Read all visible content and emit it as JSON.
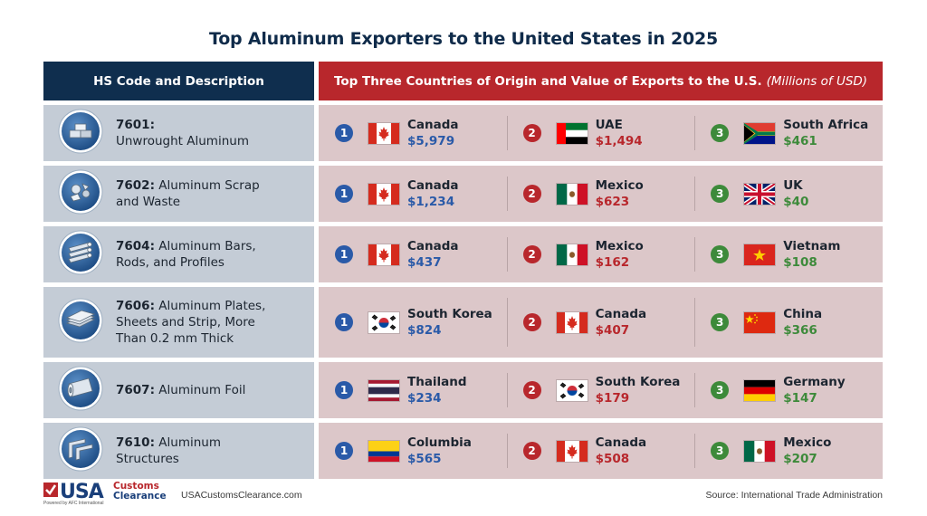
{
  "title": "Top Aluminum Exporters to the United States in 2025",
  "header": {
    "left": "HS Code and Description",
    "right": "Top Three Countries of Origin and Value of Exports to the U.S.",
    "right_unit": "(Millions of USD)"
  },
  "rows": [
    {
      "code": "7601:",
      "desc": "Unwrought Aluminum",
      "icon": "aluminum-ingots-icon",
      "exporters": [
        {
          "rank": "1",
          "country": "Canada",
          "value": "$5,979",
          "flag": "canada-flag-icon"
        },
        {
          "rank": "2",
          "country": "UAE",
          "value": "$1,494",
          "flag": "uae-flag-icon"
        },
        {
          "rank": "3",
          "country": "South Africa",
          "value": "$461",
          "flag": "south-africa-flag-icon"
        }
      ]
    },
    {
      "code": "7602:",
      "desc": "Aluminum Scrap and Waste",
      "icon": "aluminum-scrap-icon",
      "exporters": [
        {
          "rank": "1",
          "country": "Canada",
          "value": "$1,234",
          "flag": "canada-flag-icon"
        },
        {
          "rank": "2",
          "country": "Mexico",
          "value": "$623",
          "flag": "mexico-flag-icon"
        },
        {
          "rank": "3",
          "country": "UK",
          "value": "$40",
          "flag": "uk-flag-icon"
        }
      ]
    },
    {
      "code": "7604:",
      "desc": "Aluminum Bars, Rods, and Profiles",
      "icon": "aluminum-bars-icon",
      "exporters": [
        {
          "rank": "1",
          "country": "Canada",
          "value": "$437",
          "flag": "canada-flag-icon"
        },
        {
          "rank": "2",
          "country": "Mexico",
          "value": "$162",
          "flag": "mexico-flag-icon"
        },
        {
          "rank": "3",
          "country": "Vietnam",
          "value": "$108",
          "flag": "vietnam-flag-icon"
        }
      ]
    },
    {
      "code": "7606:",
      "desc": "Aluminum Plates, Sheets and Strip, More Than 0.2 mm Thick",
      "icon": "aluminum-sheets-icon",
      "exporters": [
        {
          "rank": "1",
          "country": "South Korea",
          "value": "$824",
          "flag": "south-korea-flag-icon"
        },
        {
          "rank": "2",
          "country": "Canada",
          "value": "$407",
          "flag": "canada-flag-icon"
        },
        {
          "rank": "3",
          "country": "China",
          "value": "$366",
          "flag": "china-flag-icon"
        }
      ]
    },
    {
      "code": "7607:",
      "desc": "Aluminum Foil",
      "icon": "aluminum-foil-icon",
      "exporters": [
        {
          "rank": "1",
          "country": "Thailand",
          "value": "$234",
          "flag": "thailand-flag-icon"
        },
        {
          "rank": "2",
          "country": "South Korea",
          "value": "$179",
          "flag": "south-korea-flag-icon"
        },
        {
          "rank": "3",
          "country": "Germany",
          "value": "$147",
          "flag": "germany-flag-icon"
        }
      ]
    },
    {
      "code": "7610:",
      "desc": "Aluminum Structures",
      "icon": "aluminum-structures-icon",
      "exporters": [
        {
          "rank": "1",
          "country": "Columbia",
          "value": "$565",
          "flag": "colombia-flag-icon"
        },
        {
          "rank": "2",
          "country": "Canada",
          "value": "$508",
          "flag": "canada-flag-icon"
        },
        {
          "rank": "3",
          "country": "Mexico",
          "value": "$207",
          "flag": "mexico-flag-icon"
        }
      ]
    }
  ],
  "footer": {
    "logo_usa": "USA",
    "logo_customs": "Customs",
    "logo_clearance": "Clearance",
    "logo_powered": "Powered by AFC International",
    "url": "USACustomsClearance.com",
    "source": "Source: International Trade Administration"
  },
  "colors": {
    "header_left": "#0f2e4e",
    "header_right": "#b8272c",
    "rank1": "#2a5aa8",
    "rank2": "#b8272c",
    "rank3": "#3d8a3a"
  }
}
